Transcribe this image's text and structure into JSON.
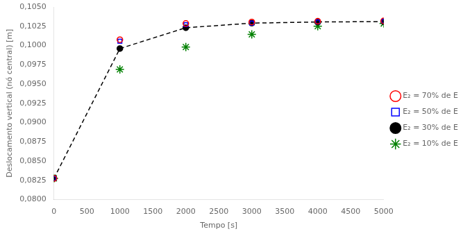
{
  "chart_data": {
    "type": "scatter",
    "xlabel": "Tempo [s]",
    "ylabel": "Deslocamento vertical (nó central) [m]",
    "x": [
      0,
      1000,
      2000,
      3000,
      4000,
      5000
    ],
    "series": [
      {
        "name": "E₂ = 70% de E",
        "color": "red",
        "marker": "circle-open",
        "line_style": "none",
        "values": [
          0.08275,
          0.10075,
          0.10285,
          0.10305,
          0.10315,
          0.1032
        ]
      },
      {
        "name": "E₂ = 50% de E",
        "color": "blue",
        "marker": "square-open",
        "line_style": "none",
        "values": [
          0.08275,
          0.10055,
          0.1027,
          0.1029,
          0.10305,
          0.10315
        ]
      },
      {
        "name": "E₂ = 30% de E",
        "color": "black",
        "marker": "circle",
        "line_style": "dashed",
        "type": "line",
        "values": [
          0.08275,
          0.0996,
          0.1023,
          0.1029,
          0.10305,
          0.1031
        ]
      },
      {
        "name": "E₂ = 10% de E",
        "color": "green",
        "marker": "star",
        "line_style": "none",
        "values": [
          0.08275,
          0.0969,
          0.0998,
          0.10145,
          0.1025,
          0.10285
        ]
      }
    ],
    "xlim": [
      0,
      5000
    ],
    "xticks": [
      0,
      500,
      1000,
      1500,
      2000,
      2500,
      3000,
      3500,
      4000,
      4500,
      5000
    ],
    "ylim": [
      0.08,
      0.105
    ],
    "yticks": [
      {
        "value": 0.08,
        "label": "0,0800"
      },
      {
        "value": 0.0825,
        "label": "0,0825"
      },
      {
        "value": 0.085,
        "label": "0,0850"
      },
      {
        "value": 0.0875,
        "label": "0,0875"
      },
      {
        "value": 0.09,
        "label": "0,0900"
      },
      {
        "value": 0.0925,
        "label": "0,0925"
      },
      {
        "value": 0.095,
        "label": "0,0950"
      },
      {
        "value": 0.0975,
        "label": "0,0975"
      },
      {
        "value": 0.1,
        "label": "0,1000"
      },
      {
        "value": 0.1025,
        "label": "0,1025"
      },
      {
        "value": 0.105,
        "label": "0,1050"
      }
    ],
    "grid": false,
    "legend": "right"
  }
}
